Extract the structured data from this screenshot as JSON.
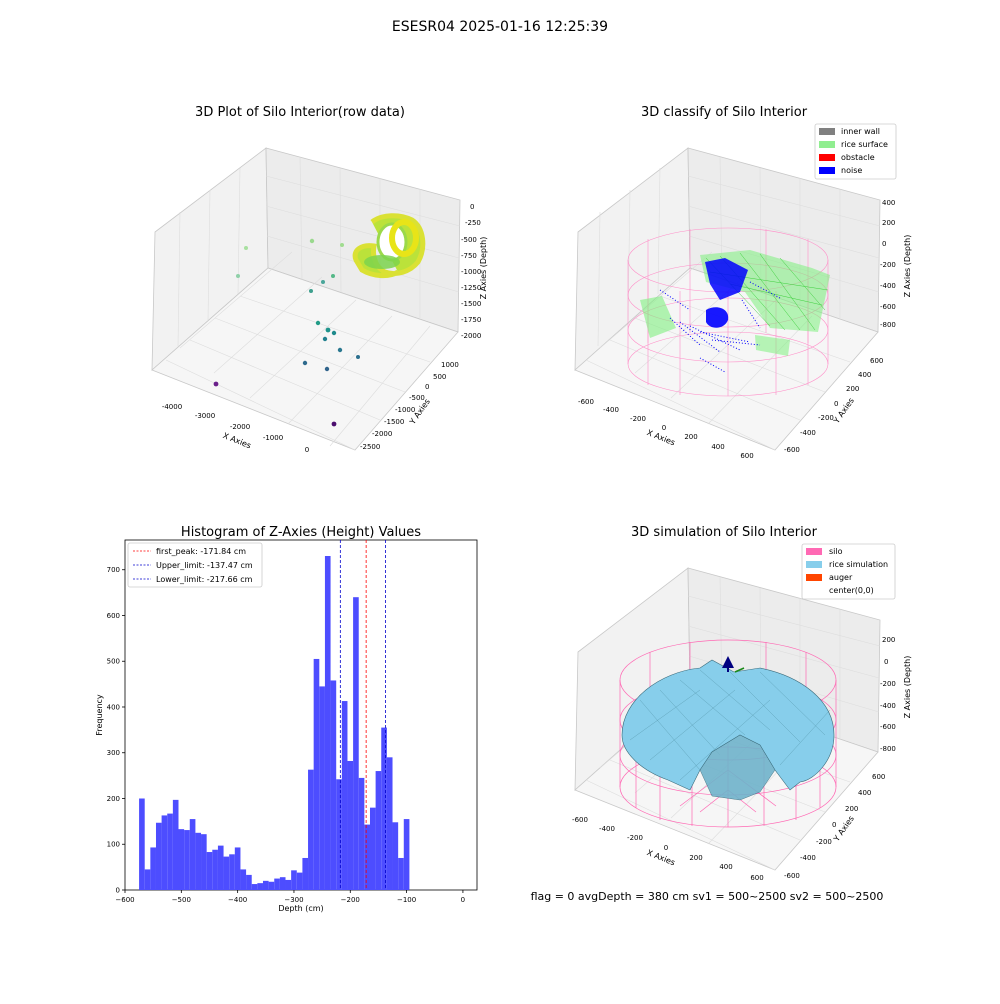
{
  "figure": {
    "suptitle": "ESESR04 2025-01-16 12:25:39",
    "footer": "flag = 0     avgDepth = 380 cm  sv1 = 500~2500  sv2 = 500~2500"
  },
  "colors": {
    "bars": "#4d4dff",
    "first_peak": "#ff0000",
    "limits": "#0000cc",
    "inner_wall": "#808080",
    "rice_surface": "#90ee90",
    "obstacle": "#ff0000",
    "noise": "#0000ff",
    "silo": "#ff69b4",
    "rice_simulation": "#87ceeb",
    "auger": "#ff4500",
    "pane": "#f2f2f2",
    "grid": "#d9d9d9"
  },
  "panels": {
    "raw": {
      "title": "3D Plot of Silo Interior(row data)",
      "xlabel": "X Axies",
      "ylabel": "Y Axies",
      "zlabel": "Z Axies (Depth)",
      "xticks": [
        "-4000",
        "-3000",
        "-2000",
        "-1000",
        "0"
      ],
      "yticks": [
        "1000",
        "500",
        "0",
        "-500",
        "-1000",
        "-1500",
        "-2000",
        "-2500"
      ],
      "zticks": [
        "0",
        "-250",
        "-500",
        "-750",
        "-1000",
        "-1250",
        "-1500",
        "-1750",
        "-2000"
      ]
    },
    "classify": {
      "title": "3D classify of Silo Interior",
      "xlabel": "X Axies",
      "ylabel": "Y Axies",
      "zlabel": "Z Axies (Depth)",
      "xticks": [
        "-600",
        "-400",
        "-200",
        "0",
        "200",
        "400",
        "600"
      ],
      "yticks": [
        "600",
        "400",
        "200",
        "0",
        "-200",
        "-400",
        "-600"
      ],
      "zticks": [
        "400",
        "200",
        "0",
        "-200",
        "-400",
        "-600",
        "-800"
      ],
      "legend": [
        "inner wall",
        "rice surface",
        "obstacle",
        "noise"
      ]
    },
    "simulation": {
      "title": "3D simulation of Silo Interior",
      "xlabel": "X Axies",
      "ylabel": "Y Axies",
      "zlabel": "Z Axies (Depth)",
      "xticks": [
        "-600",
        "-400",
        "-200",
        "0",
        "200",
        "400",
        "600"
      ],
      "yticks": [
        "600",
        "400",
        "200",
        "0",
        "-200",
        "-400",
        "-600"
      ],
      "zticks": [
        "200",
        "0",
        "-200",
        "-400",
        "-600",
        "-800"
      ],
      "legend": [
        "silo",
        "rice simulation",
        "auger",
        "center(0,0)"
      ]
    }
  },
  "chart_data": {
    "type": "bar",
    "title": "Histogram of Z-Axies (Height) Values",
    "xlabel": "Depth (cm)",
    "ylabel": "Frequency",
    "xlim": [
      -600,
      25
    ],
    "ylim": [
      0,
      765
    ],
    "xticks": [
      -600,
      -500,
      -400,
      -300,
      -200,
      -100,
      0
    ],
    "yticks": [
      0,
      100,
      200,
      300,
      400,
      500,
      600,
      700
    ],
    "bin_start": -575,
    "bin_width": 10,
    "values": [
      200,
      45,
      93,
      147,
      163,
      167,
      197,
      133,
      131,
      155,
      125,
      122,
      83,
      88,
      97,
      73,
      78,
      93,
      45,
      33,
      13,
      15,
      20,
      18,
      25,
      28,
      22,
      43,
      38,
      70,
      263,
      505,
      445,
      730,
      458,
      242,
      413,
      282,
      640,
      245,
      143,
      180,
      260,
      355,
      290,
      148,
      70,
      155
    ],
    "legend": [
      {
        "label": "first_peak: -171.84 cm",
        "value": -171.84
      },
      {
        "label": "Upper_limit: -137.47 cm",
        "value": -137.47
      },
      {
        "label": "Lower_limit: -217.66 cm",
        "value": -217.66
      }
    ],
    "grid": false,
    "legend_position": "top-left"
  }
}
